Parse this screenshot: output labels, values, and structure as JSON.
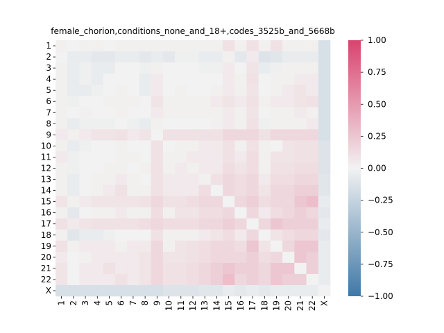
{
  "chart_data": {
    "type": "heatmap",
    "title": "female_chorion,conditions_none_and_18+,codes_3525b_and_5668b",
    "xlabel": "",
    "ylabel": "",
    "x_categories": [
      "1",
      "2",
      "3",
      "4",
      "5",
      "6",
      "7",
      "8",
      "9",
      "10",
      "11",
      "12",
      "13",
      "14",
      "15",
      "16",
      "17",
      "18",
      "19",
      "20",
      "21",
      "22",
      "X"
    ],
    "y_categories": [
      "1",
      "2",
      "3",
      "4",
      "5",
      "6",
      "7",
      "8",
      "9",
      "10",
      "11",
      "12",
      "13",
      "14",
      "15",
      "16",
      "17",
      "18",
      "19",
      "20",
      "21",
      "22",
      "X"
    ],
    "colorbar": {
      "range": [
        -1.0,
        1.0
      ],
      "ticks": [
        1.0,
        0.75,
        0.5,
        0.25,
        0.0,
        -0.25,
        -0.5,
        -0.75,
        -1.0
      ],
      "tick_labels": [
        "1.00",
        "0.75",
        "0.50",
        "0.25",
        "0.00",
        "−0.25",
        "−0.50",
        "−0.75",
        "−1.00"
      ],
      "colors": {
        "negative": "#3f78a6",
        "center": "#f2f2f2",
        "positive": "#d9436e"
      }
    },
    "values": [
      [
        0.02,
        0.0,
        0.02,
        0.02,
        0.0,
        0.02,
        0.02,
        0.02,
        0.02,
        0.02,
        0.02,
        0.02,
        0.02,
        0.02,
        0.1,
        0.02,
        0.1,
        0.02,
        0.1,
        0.02,
        0.02,
        0.02,
        -0.15
      ],
      [
        0.0,
        -0.05,
        -0.05,
        -0.08,
        -0.08,
        -0.05,
        -0.05,
        -0.08,
        -0.05,
        -0.08,
        -0.02,
        -0.02,
        -0.05,
        -0.05,
        0.02,
        -0.08,
        0.05,
        -0.12,
        -0.1,
        -0.05,
        -0.05,
        -0.05,
        -0.15
      ],
      [
        0.02,
        -0.05,
        -0.02,
        -0.05,
        -0.05,
        0.0,
        0.0,
        -0.02,
        0.02,
        0.0,
        0.0,
        0.0,
        -0.02,
        -0.02,
        0.05,
        0.0,
        0.08,
        -0.05,
        -0.02,
        0.02,
        0.02,
        0.02,
        -0.15
      ],
      [
        0.02,
        -0.05,
        -0.02,
        -0.05,
        0.0,
        0.0,
        0.0,
        -0.05,
        0.05,
        0.0,
        0.0,
        0.0,
        0.0,
        0.0,
        0.05,
        0.02,
        0.1,
        0.0,
        0.02,
        0.02,
        0.05,
        0.05,
        -0.15
      ],
      [
        0.02,
        -0.05,
        -0.05,
        -0.02,
        0.0,
        0.02,
        0.0,
        -0.05,
        0.05,
        0.0,
        0.02,
        0.0,
        0.0,
        0.02,
        0.05,
        0.02,
        0.08,
        0.0,
        0.02,
        0.05,
        0.08,
        0.05,
        -0.15
      ],
      [
        0.02,
        -0.02,
        0.0,
        0.0,
        0.02,
        0.02,
        0.02,
        0.0,
        0.08,
        0.02,
        0.02,
        0.02,
        0.02,
        0.05,
        0.08,
        0.05,
        0.1,
        0.02,
        0.05,
        0.05,
        0.08,
        0.1,
        -0.15
      ],
      [
        0.02,
        0.0,
        0.02,
        0.0,
        0.0,
        0.02,
        0.0,
        0.0,
        0.05,
        0.02,
        0.02,
        0.02,
        0.02,
        0.02,
        0.05,
        0.02,
        0.08,
        0.0,
        0.02,
        0.02,
        0.05,
        0.02,
        -0.15
      ],
      [
        0.02,
        -0.05,
        -0.02,
        -0.02,
        -0.02,
        0.0,
        -0.02,
        -0.05,
        0.02,
        0.0,
        0.0,
        0.0,
        0.0,
        0.02,
        0.05,
        0.02,
        0.1,
        -0.02,
        0.02,
        0.02,
        0.02,
        0.05,
        -0.15
      ],
      [
        0.05,
        0.02,
        0.05,
        0.08,
        0.08,
        0.1,
        0.05,
        0.08,
        0.0,
        0.1,
        0.1,
        0.1,
        0.1,
        0.1,
        0.15,
        0.15,
        0.15,
        0.1,
        0.15,
        0.15,
        0.15,
        0.15,
        -0.15
      ],
      [
        0.02,
        -0.05,
        -0.02,
        0.0,
        0.0,
        0.02,
        0.0,
        0.0,
        0.1,
        0.0,
        0.02,
        0.02,
        0.05,
        0.05,
        0.1,
        0.02,
        0.1,
        0.02,
        0.0,
        0.08,
        0.1,
        0.1,
        -0.12
      ],
      [
        0.05,
        -0.02,
        0.0,
        0.0,
        0.0,
        0.02,
        0.02,
        0.0,
        0.1,
        0.02,
        0.02,
        0.05,
        0.05,
        0.05,
        0.1,
        0.05,
        0.12,
        0.02,
        0.08,
        0.08,
        0.1,
        0.1,
        -0.12
      ],
      [
        0.02,
        -0.02,
        0.0,
        0.0,
        0.02,
        0.02,
        0.0,
        0.02,
        0.1,
        0.02,
        0.05,
        0.02,
        0.05,
        0.05,
        0.12,
        0.08,
        0.12,
        0.02,
        0.1,
        0.1,
        0.12,
        0.12,
        -0.12
      ],
      [
        0.02,
        -0.05,
        0.0,
        0.02,
        0.02,
        0.05,
        0.02,
        0.0,
        0.1,
        0.05,
        0.05,
        0.05,
        0.02,
        0.1,
        0.15,
        0.12,
        0.15,
        0.05,
        0.12,
        0.12,
        0.15,
        0.15,
        -0.1
      ],
      [
        0.02,
        -0.05,
        0.0,
        0.02,
        0.05,
        0.1,
        0.02,
        0.02,
        0.1,
        0.05,
        0.05,
        0.05,
        0.12,
        0.0,
        0.15,
        0.12,
        0.15,
        0.08,
        0.15,
        0.15,
        0.2,
        0.2,
        -0.1
      ],
      [
        0.08,
        0.02,
        0.05,
        0.08,
        0.08,
        0.08,
        0.08,
        0.1,
        0.15,
        0.1,
        0.1,
        0.12,
        0.15,
        0.15,
        0.0,
        0.15,
        0.2,
        0.12,
        0.15,
        0.15,
        0.25,
        0.3,
        -0.05
      ],
      [
        0.02,
        -0.08,
        0.0,
        0.02,
        0.02,
        0.05,
        0.02,
        0.02,
        0.12,
        0.02,
        0.08,
        0.08,
        0.12,
        0.12,
        0.15,
        0.0,
        0.15,
        0.05,
        0.12,
        0.15,
        0.2,
        0.15,
        -0.08
      ],
      [
        0.1,
        0.05,
        0.08,
        0.1,
        0.1,
        0.1,
        0.1,
        0.12,
        0.15,
        0.12,
        0.12,
        0.12,
        0.15,
        0.15,
        0.2,
        0.15,
        0.0,
        0.15,
        0.25,
        0.2,
        0.2,
        0.2,
        -0.05
      ],
      [
        0.02,
        -0.1,
        -0.05,
        -0.05,
        -0.02,
        0.0,
        0.0,
        0.0,
        0.1,
        0.02,
        0.02,
        0.02,
        0.05,
        0.08,
        0.12,
        0.05,
        0.15,
        0.0,
        0.08,
        0.12,
        0.15,
        0.15,
        -0.08
      ],
      [
        0.1,
        0.02,
        0.05,
        0.05,
        0.05,
        0.02,
        0.05,
        0.05,
        0.15,
        0.02,
        0.08,
        0.1,
        0.12,
        0.15,
        0.15,
        0.12,
        0.25,
        0.08,
        0.0,
        0.15,
        0.25,
        0.25,
        -0.05
      ],
      [
        0.05,
        0.0,
        0.02,
        0.05,
        0.05,
        0.05,
        0.05,
        0.08,
        0.15,
        0.08,
        0.08,
        0.1,
        0.12,
        0.15,
        0.15,
        0.15,
        0.2,
        0.12,
        0.15,
        0.0,
        0.25,
        0.2,
        -0.05
      ],
      [
        0.08,
        0.0,
        0.05,
        0.05,
        0.1,
        0.05,
        0.05,
        0.08,
        0.15,
        0.1,
        0.1,
        0.12,
        0.15,
        0.2,
        0.25,
        0.2,
        0.2,
        0.15,
        0.25,
        0.25,
        0.0,
        0.2,
        -0.05
      ],
      [
        0.08,
        0.0,
        0.05,
        0.05,
        0.05,
        0.1,
        0.05,
        0.08,
        0.15,
        0.1,
        0.1,
        0.12,
        0.15,
        0.2,
        0.3,
        0.15,
        0.2,
        0.15,
        0.25,
        0.2,
        0.2,
        0.0,
        -0.05
      ],
      [
        -0.15,
        -0.15,
        -0.15,
        -0.15,
        -0.15,
        -0.15,
        -0.15,
        -0.15,
        -0.15,
        -0.12,
        -0.12,
        -0.12,
        -0.1,
        -0.1,
        -0.05,
        -0.08,
        -0.05,
        -0.08,
        -0.05,
        -0.05,
        -0.05,
        -0.05,
        0.0
      ]
    ]
  }
}
